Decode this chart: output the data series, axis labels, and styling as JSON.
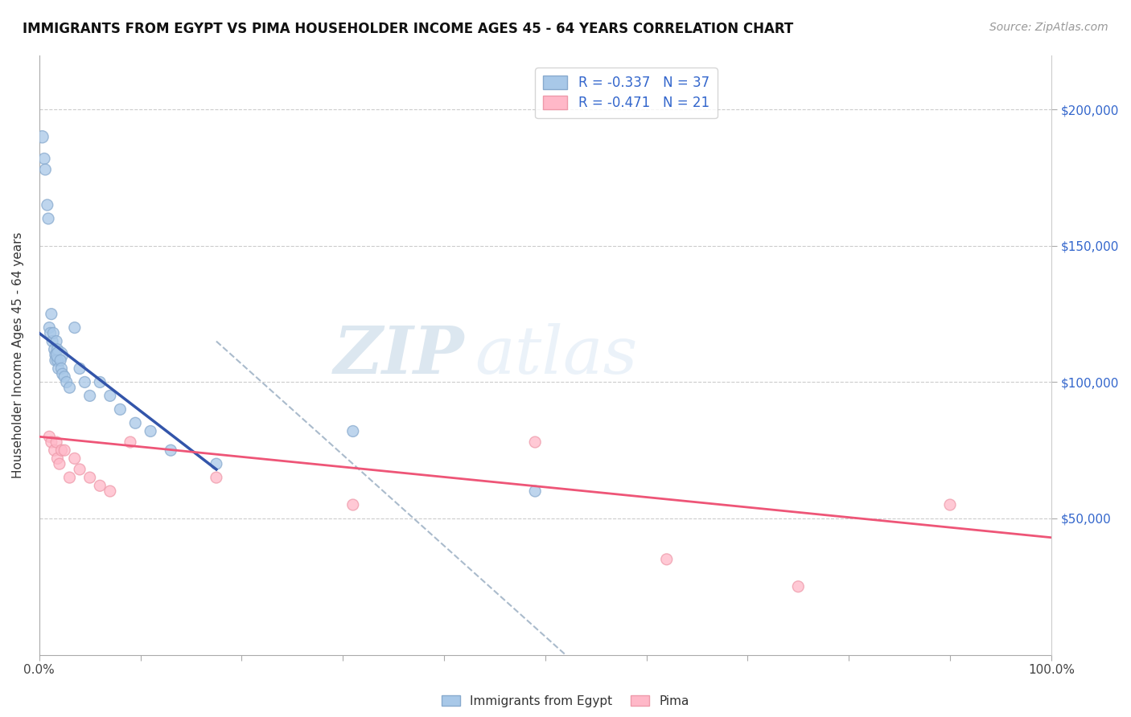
{
  "title": "IMMIGRANTS FROM EGYPT VS PIMA HOUSEHOLDER INCOME AGES 45 - 64 YEARS CORRELATION CHART",
  "source_text": "Source: ZipAtlas.com",
  "ylabel": "Householder Income Ages 45 - 64 years",
  "xlim": [
    0,
    1.0
  ],
  "ylim": [
    0,
    220000
  ],
  "ytick_vals_right": [
    50000,
    100000,
    150000,
    200000
  ],
  "watermark_zip": "ZIP",
  "watermark_atlas": "atlas",
  "blue_color": "#A8C8E8",
  "blue_edge_color": "#88AACE",
  "pink_color": "#FFB8C8",
  "pink_edge_color": "#EE9AAA",
  "blue_line_color": "#3355AA",
  "pink_line_color": "#EE5577",
  "dashed_line_color": "#AABBCC",
  "blue_scatter_x": [
    0.003,
    0.005,
    0.006,
    0.008,
    0.009,
    0.01,
    0.011,
    0.012,
    0.013,
    0.014,
    0.015,
    0.016,
    0.016,
    0.017,
    0.018,
    0.018,
    0.019,
    0.02,
    0.021,
    0.022,
    0.023,
    0.025,
    0.027,
    0.03,
    0.035,
    0.04,
    0.045,
    0.05,
    0.06,
    0.07,
    0.08,
    0.095,
    0.11,
    0.13,
    0.175,
    0.31,
    0.49
  ],
  "blue_scatter_y": [
    190000,
    182000,
    178000,
    165000,
    160000,
    120000,
    118000,
    125000,
    115000,
    118000,
    112000,
    110000,
    108000,
    115000,
    108000,
    112000,
    105000,
    110000,
    108000,
    105000,
    103000,
    102000,
    100000,
    98000,
    120000,
    105000,
    100000,
    95000,
    100000,
    95000,
    90000,
    85000,
    82000,
    75000,
    70000,
    82000,
    60000
  ],
  "blue_scatter_sizes": [
    120,
    100,
    100,
    100,
    100,
    100,
    100,
    100,
    100,
    100,
    100,
    100,
    100,
    100,
    100,
    100,
    100,
    220,
    100,
    100,
    100,
    100,
    100,
    100,
    100,
    100,
    100,
    100,
    100,
    100,
    100,
    100,
    100,
    100,
    100,
    100,
    100
  ],
  "pink_scatter_x": [
    0.01,
    0.012,
    0.015,
    0.017,
    0.018,
    0.02,
    0.022,
    0.025,
    0.03,
    0.035,
    0.04,
    0.05,
    0.06,
    0.07,
    0.09,
    0.175,
    0.31,
    0.49,
    0.62,
    0.75,
    0.9
  ],
  "pink_scatter_y": [
    80000,
    78000,
    75000,
    78000,
    72000,
    70000,
    75000,
    75000,
    65000,
    72000,
    68000,
    65000,
    62000,
    60000,
    78000,
    65000,
    55000,
    78000,
    35000,
    25000,
    55000
  ],
  "pink_scatter_sizes": [
    100,
    100,
    100,
    100,
    100,
    100,
    100,
    100,
    100,
    100,
    100,
    100,
    100,
    100,
    100,
    100,
    100,
    100,
    100,
    100,
    100
  ],
  "blue_trend_x": [
    0.0,
    0.175
  ],
  "blue_trend_y": [
    118000,
    68000
  ],
  "pink_trend_x": [
    0.0,
    1.0
  ],
  "pink_trend_y": [
    80000,
    43000
  ],
  "dashed_trend_x": [
    0.175,
    0.52
  ],
  "dashed_trend_y": [
    115000,
    0
  ]
}
